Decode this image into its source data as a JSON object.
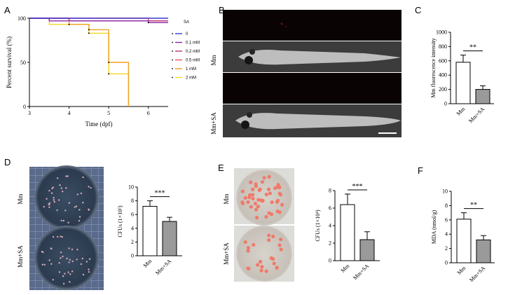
{
  "panels": {
    "A": "A",
    "B": "B",
    "C": "C",
    "D": "D",
    "E": "E",
    "F": "F"
  },
  "image_labels": {
    "B_top": "Mm",
    "B_bottom": "Mm+SA",
    "D_top": "Mm",
    "D_bottom": "Mm+SA",
    "E_top": "Mm",
    "E_bottom": "Mm+SA"
  },
  "colors": {
    "c0": "#3b3bd0",
    "c01": "#8a2aa8",
    "c02": "#c0307a",
    "c05": "#e8506c",
    "c1": "#f0a020",
    "c2": "#f4d820",
    "bar_mm": "#ffffff",
    "bar_sa": "#9a9a9a"
  },
  "chart_data": [
    {
      "id": "A",
      "type": "line",
      "xlabel": "Time (dpf)",
      "ylabel": "Percent survival (%)",
      "xlim": [
        3,
        6.5
      ],
      "ylim": [
        0,
        100
      ],
      "xticks": [
        "3",
        "4",
        "5",
        "6"
      ],
      "yticks": [
        "0",
        "50",
        "100"
      ],
      "legend_title": "SA",
      "legend_position": "right",
      "series": [
        {
          "name": "0",
          "color": "#3b3bd0",
          "points": [
            [
              3,
              100
            ],
            [
              6.5,
              100
            ]
          ]
        },
        {
          "name": "0.1 mM",
          "color": "#8a2aa8",
          "points": [
            [
              3,
              100
            ],
            [
              3.5,
              100
            ],
            [
              3.5,
              97
            ],
            [
              6,
              97
            ],
            [
              6,
              95
            ],
            [
              6.5,
              95
            ]
          ]
        },
        {
          "name": "0.2 mM",
          "color": "#c0307a",
          "points": [
            [
              3,
              100
            ],
            [
              4,
              100
            ],
            [
              4,
              97
            ],
            [
              6.5,
              97
            ]
          ]
        },
        {
          "name": "0.5 mM",
          "color": "#e8506c",
          "points": [
            [
              3,
              100
            ],
            [
              6,
              100
            ],
            [
              6,
              97
            ],
            [
              6.5,
              97
            ]
          ]
        },
        {
          "name": "1 mM",
          "color": "#f0a020",
          "points": [
            [
              3,
              100
            ],
            [
              4,
              100
            ],
            [
              4,
              93
            ],
            [
              4.5,
              93
            ],
            [
              4.5,
              87
            ],
            [
              5,
              87
            ],
            [
              5,
              50
            ],
            [
              5.5,
              50
            ],
            [
              5.5,
              0
            ]
          ]
        },
        {
          "name": "2 mM",
          "color": "#f4d820",
          "points": [
            [
              3,
              100
            ],
            [
              3.5,
              100
            ],
            [
              3.5,
              93
            ],
            [
              4.5,
              93
            ],
            [
              4.5,
              83
            ],
            [
              5,
              83
            ],
            [
              5,
              37
            ],
            [
              5.5,
              37
            ],
            [
              5.5,
              0
            ]
          ]
        }
      ]
    },
    {
      "id": "C",
      "type": "bar",
      "ylabel": "Mm fluorescence intensity",
      "categories": [
        "Mm",
        "Mm+SA"
      ],
      "values": [
        580,
        200
      ],
      "errors": [
        100,
        50
      ],
      "ylim": [
        0,
        1000
      ],
      "yticks": [
        "0",
        "200",
        "400",
        "600",
        "800",
        "1000"
      ],
      "significance": "**"
    },
    {
      "id": "D",
      "type": "bar",
      "ylabel": "CFUs (1×10⁵)",
      "categories": [
        "Mm",
        "Mm+SA"
      ],
      "values": [
        7.2,
        5.0
      ],
      "errors": [
        0.8,
        0.6
      ],
      "ylim": [
        0,
        10
      ],
      "yticks": [
        "0",
        "2",
        "4",
        "6",
        "8",
        "10"
      ],
      "significance": "***"
    },
    {
      "id": "E",
      "type": "bar",
      "ylabel": "CFUs (1×10⁴)",
      "categories": [
        "Mm",
        "Mm+SA"
      ],
      "values": [
        6.4,
        2.4
      ],
      "errors": [
        1.2,
        0.9
      ],
      "ylim": [
        0,
        8
      ],
      "yticks": [
        "0",
        "2",
        "4",
        "6",
        "8"
      ],
      "significance": "***"
    },
    {
      "id": "F",
      "type": "bar",
      "ylabel": "MDA (nmol/g)",
      "categories": [
        "Mm",
        "Mm+SA"
      ],
      "values": [
        6.1,
        3.2
      ],
      "errors": [
        0.9,
        0.6
      ],
      "ylim": [
        0,
        10
      ],
      "yticks": [
        "0",
        "2",
        "4",
        "6",
        "8",
        "10"
      ],
      "significance": "**"
    }
  ]
}
